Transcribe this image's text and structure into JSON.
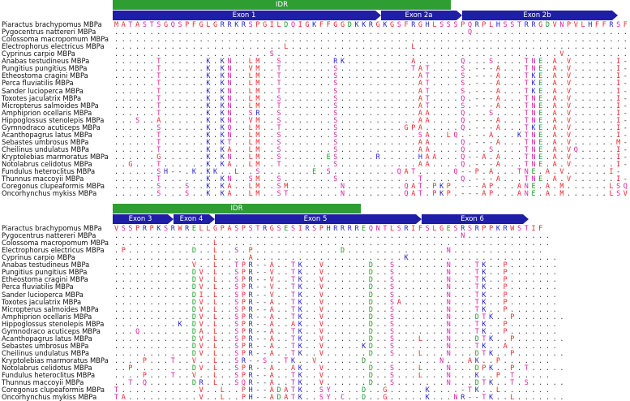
{
  "blocks": [
    {
      "idr_bar": {
        "label": "IDR"
      },
      "exons": [
        {
          "label": "Exon 1"
        },
        {
          "label": "Exon 2a"
        },
        {
          "label": "Exon 2b"
        }
      ],
      "rows": [
        {
          "name": "Piaractus brachypomus MBPa",
          "seq": "MATASTSGQSPFGLGRRKRSPGILDQIGKFFGGDKKRGKGSFRGHLSSSPQRPLHSSTRRGDVNPVLHFFRSF-"
        },
        {
          "name": "Pygocentrus nattereri MBPa",
          "seq": "..................................................Q......................."
        },
        {
          "name": "Colossoma macropomum MBPa",
          "seq": ".........................................................................."
        },
        {
          "name": "Electrophorus electricus MBPa",
          "seq": "........................L.................L..............................."
        },
        {
          "name": "Cyprinus carpio MBPa",
          "seq": "......................S........................................V.........."
        },
        {
          "name": "Anabas testudineus MBPa",
          "seq": "......T......K.KN..LM..S.......RK.........A......Q...S....TNE.A.V......I-"
        },
        {
          "name": "Pungitius pungitius MBPa",
          "seq": "......T......K.KN..VM..T.......S..........TAT....S.---A...TNE.A.V......I-"
        },
        {
          "name": "Etheostoma cragini MBPa",
          "seq": "......T......K.KN..LM..T.......S...........AT....S.---A...TKE.A.V......I-"
        },
        {
          "name": "Perca fluviatilis MBPa",
          "seq": "......T......K.KN..LM..T.......S...........AT....S.---A...TKE.A.V......I-"
        },
        {
          "name": "Sander lucioperca MBPa",
          "seq": "......T......K.KN..LM..T.......S...........AT....S.---A...TKE.A.V......I-"
        },
        {
          "name": "Toxotes jaculatrix MBPa",
          "seq": "......T......K.KN..LM..S.......S...........AT....Q.---A...TNE.A.V......I-"
        },
        {
          "name": "Micropterus salmoides MBPa",
          "seq": "......T......K.KN..LM..T.......S...........AT....S.---A...TNE.A.V......I-"
        },
        {
          "name": "Amphiprion ocellaris MBPa",
          "seq": "......T......K.KN..SR..S.......S...........AA....Q...S....TNE.A.V......I-"
        },
        {
          "name": "Hippoglossus stenolepis MBPa",
          "seq": "...S..A......K.KN..VM..S.......S...........AA....Q.---A...TNE.A.V......I-"
        },
        {
          "name": "Gymnodraco acuticeps MBPa",
          "seq": "......S......K.KQ..LM..T.......S.........GPA.....Q.---A...TKE.A.V......I-"
        },
        {
          "name": "Acanthopagrus latus MBPa",
          "seq": "......T......K.KN..LM..S.......S...........SA..LQ.---A...KTNE.A.V......I-"
        },
        {
          "name": "Sebastes umbrosus MBPa",
          "seq": "......T......K.KT..LM..S.......S...........AA....Q.---A...TNE.A.V......M-"
        },
        {
          "name": "Cheilinus undulatus MBPa",
          "seq": "......T......K.KA..LM..S.......S...........AA....Q...S....TNE.A.VQ.....I-"
        },
        {
          "name": "Kryptolebias marmoratus MBPa",
          "seq": "......G......K.KN..LM..S......ES.....R.....HAA...Q--A.A...TNE.A.V......I-"
        },
        {
          "name": "Notolabrus celidotus MBPa",
          "seq": "..G...T......K.KA..LM..T.......S...........AA....Q.---A...TNE.A.V......I-"
        },
        {
          "name": "Fundulus heteroclitus MBPa",
          "seq": "......SH--.K.KK..L..S.......E.S.........QAT.....Q--P.A...TNE.A.V......I-"
        },
        {
          "name": "Thunnus maccoyii MBPa",
          "seq": "......T......K.KN..SM..S.......S...........T.....Q.---A...TNE.A.V......I-"
        },
        {
          "name": "Coregonus clupeaformis MBPa",
          "seq": "......S...S..K.KA..LM..SM.......N........QAT.PKP.---AP...ANE.A.M......LSQ"
        },
        {
          "name": "Oncorhynchus mykiss MBPa",
          "seq": "......S...S..K.KA..LM..ST.......N........QAT.PKP.---AP...ANE.A.M......LSV"
        }
      ]
    },
    {
      "idr_bar": {
        "label": "IDR"
      },
      "exons": [
        {
          "label": "Exon 3"
        },
        {
          "label": "Exon 4"
        },
        {
          "label": "Exon 5"
        },
        {
          "label": "Exon 6"
        }
      ],
      "rows": [
        {
          "name": "Piaractus brachypomus MBPa",
          "seq": "VSSPRPKSRWRELLGPASPSTRGSESIRSPHRRRREQNTLSRIFSLGESRSRPPKRWSTIF"
        },
        {
          "name": "Pygocentrus nattereri MBPa",
          "seq": ".................................................N............"
        },
        {
          "name": "Colossoma macropomum MBPa",
          "seq": "..............L..............................................."
        },
        {
          "name": "Electrophorus electricus MBPa",
          "seq": ".P.........D..L..S.P............D..............N............."
        },
        {
          "name": "Cyprinus carpio MBPa",
          "seq": "..............L....A.....................K....................."
        },
        {
          "name": "Anabas testudineus MBPa",
          "seq": "...........V..L..TPR--A..TK..V......D..S.......N...TK..P......."
        },
        {
          "name": "Pungitius pungitius MBPa",
          "seq": "...........DV.L..SPR--V..TK..V......D..S.......N...TK..P......."
        },
        {
          "name": "Etheostoma cragini MBPa",
          "seq": "...........DV.L..SPR--V..TK..V......D..S.......N...TK..P......."
        },
        {
          "name": "Perca fluviatilis MBPa",
          "seq": "...........DV.L..SPR--V..TK..V......D..S.......N...TK..P......."
        },
        {
          "name": "Sander lucioperca MBPa",
          "seq": "...........DI.L..SPR--V..TK..V......D..S.......N...TK..P......."
        },
        {
          "name": "Toxotes jaculatrix MBPa",
          "seq": "...........DV.L..SPR--A..TK..V......D..SA......N...TK..P......."
        },
        {
          "name": "Micropterus salmoides MBPa",
          "seq": "...........DV.L..SPR--A..TK..V......D..S.......N...TK..P......."
        },
        {
          "name": "Amphiprion ocellaris MBPa",
          "seq": "...........DV.L..SPR--A..TK..V......D..S.......N...DTK..P......."
        },
        {
          "name": "Hippoglossus stenolepis MBPa",
          "seq": ".........K.DV.L..SPR--A..AK..V......D..S.......N...TK..P......."
        },
        {
          "name": "Gymnodraco acuticeps MBPa",
          "seq": "...Q.......DA.L..SPR--A..TK..V......D..S.......N...TK..P......."
        },
        {
          "name": "Acanthopagrus latus MBPa",
          "seq": "...........DV.L..SPR--A..TK..V......D..S...L...N...DTK..P......."
        },
        {
          "name": "Sebastes umbrosus MBPa",
          "seq": "...........DV.L..SPR--A..TK..V.....KD..S.......N...TK..A......."
        },
        {
          "name": "Cheilinus undulatus MBPa",
          "seq": "...........DV.L..SPR--A..TK..V......D..S...L...N...DTK..P......."
        },
        {
          "name": "Kryptolebias marmoratus MBPa",
          "seq": "....P...T..V..L..SR--S..TK..V......D..........N...AK..P......."
        },
        {
          "name": "Notolabrus celidotus MBPa",
          "seq": "..P........DV.L..SPR--A..AK..V......D..S...L...N...DPK..P.T....."
        },
        {
          "name": "Fundulus heteroclitus MBPa",
          "seq": "....P...T..V..L..SPR--A..TK..V......D..S...L...N...K..P.T....."
        },
        {
          "name": "Thunnus maccoyii MBPa",
          "seq": "..T.Q......DR.L..SQR--A..TK..V......D..S.......N...DTK..T.S....."
        },
        {
          "name": "Coregonus clupeaformis MBPa",
          "seq": "T...........V..L..PH--ADATK..SY....D..G.....K....-TK..L......."
        },
        {
          "name": "Oncorhynchus mykiss MBPa",
          "seq": "TA..........V..L..PH--ADATK..SY.C..D..G.....K...NR--TK..L......."
        }
      ]
    }
  ],
  "colors": {
    "idr_bar": "#2e9e33",
    "exon_bar": "#1e1ea6",
    "residue_red": "#e8262b",
    "residue_blue": "#2323c8",
    "residue_magenta": "#d6249f",
    "residue_green": "#1f9a2a",
    "dot": "#333333"
  }
}
